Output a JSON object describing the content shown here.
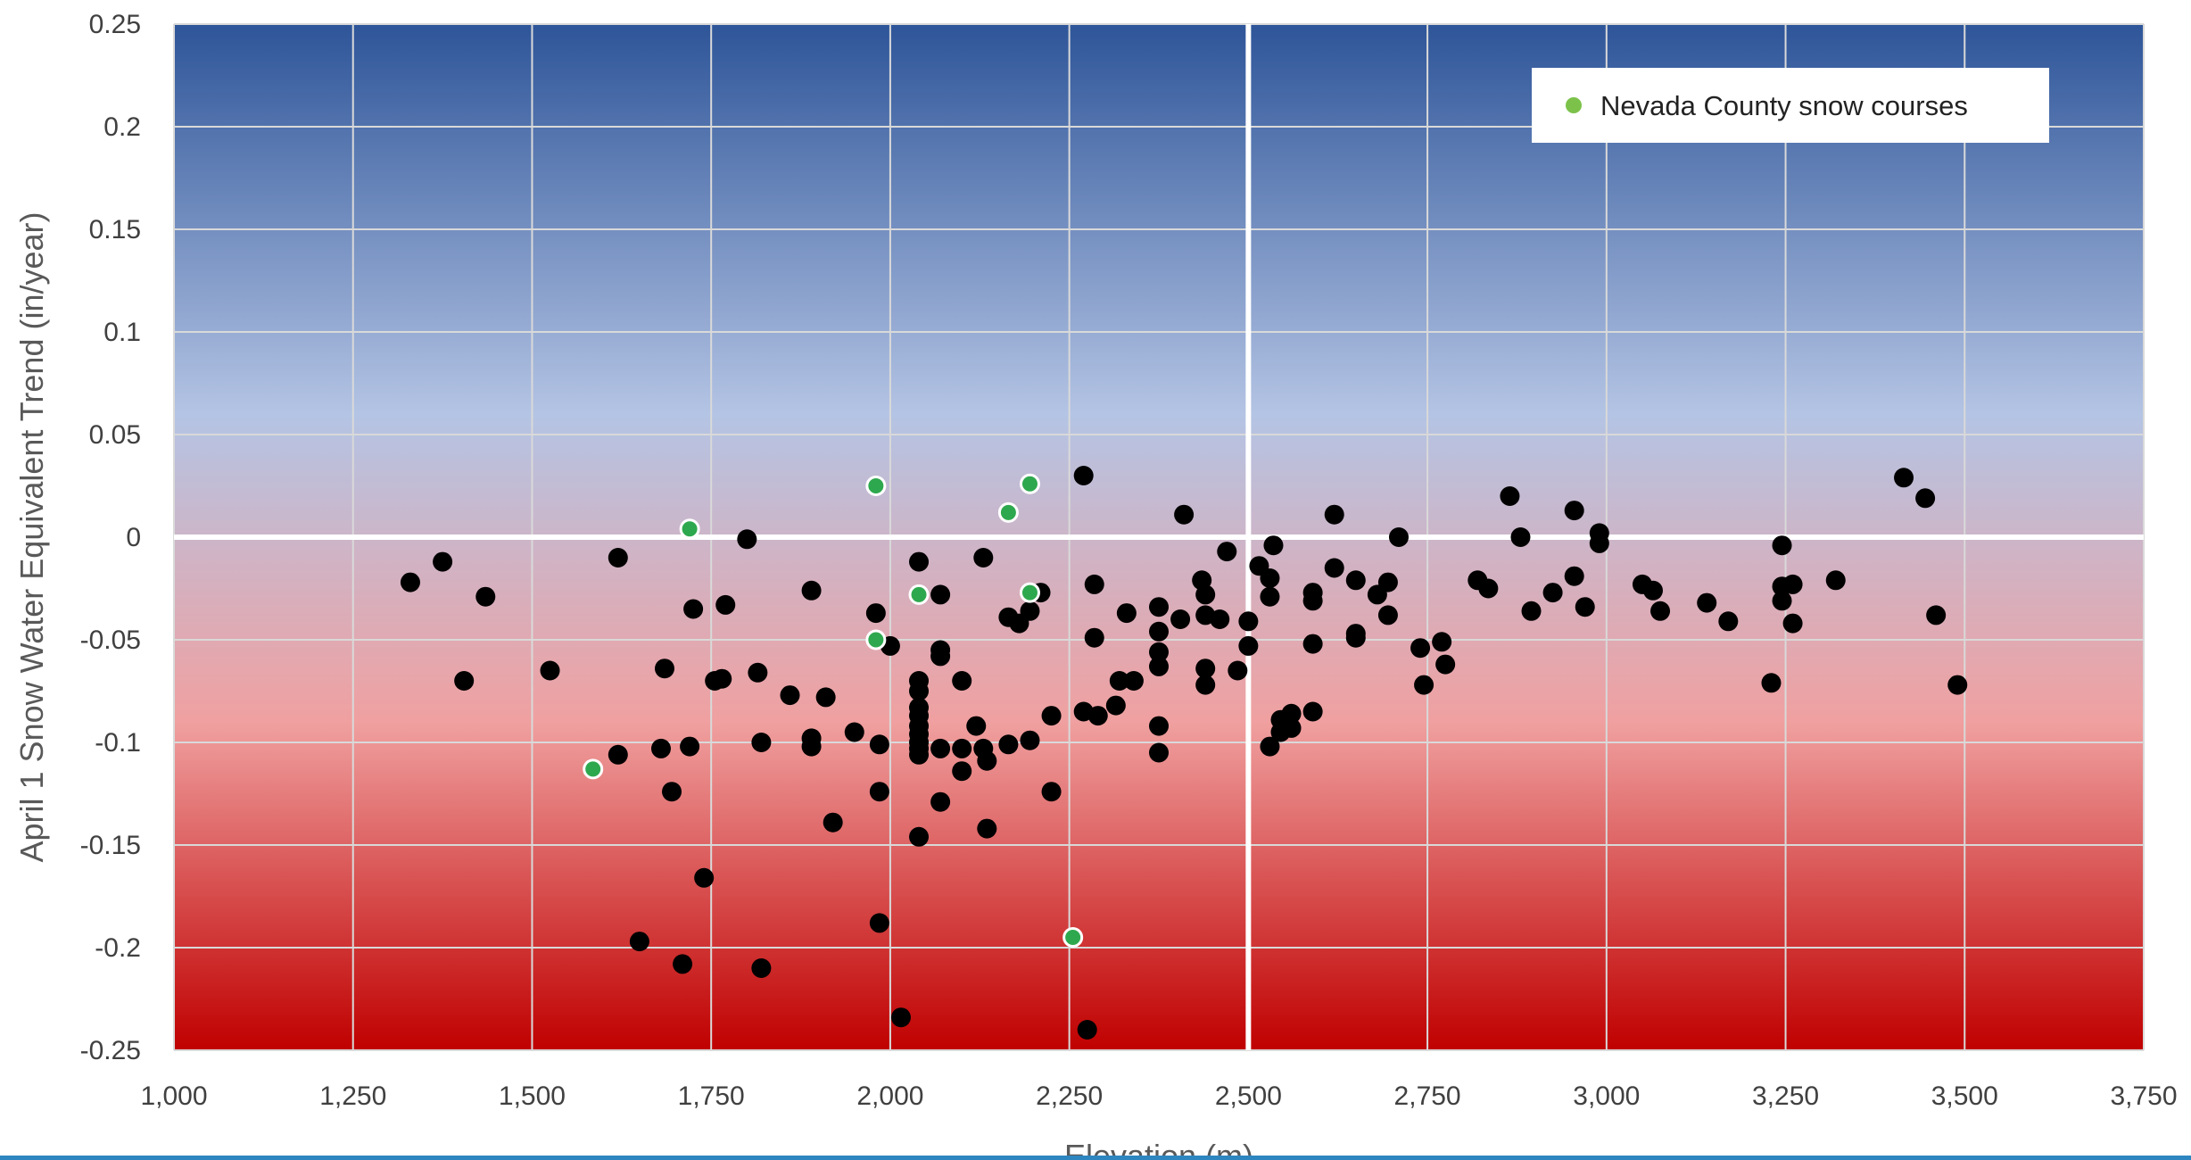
{
  "chart_data": {
    "type": "scatter",
    "title": "",
    "xlabel": "Elevation (m)",
    "ylabel": "April 1 Snow Water Equivalent Trend (in/year)",
    "xlim": [
      1000,
      3750
    ],
    "ylim": [
      -0.25,
      0.25
    ],
    "x_ticks": [
      1000,
      1250,
      1500,
      1750,
      2000,
      2250,
      2500,
      2750,
      3000,
      3250,
      3500,
      3750
    ],
    "x_tick_labels": [
      "1,000",
      "1,250",
      "1,500",
      "1,750",
      "2,000",
      "2,250",
      "2,500",
      "2,750",
      "3,000",
      "3,250",
      "3,500",
      "3,750"
    ],
    "y_ticks": [
      0.25,
      0.2,
      0.15,
      0.1,
      0.05,
      0,
      -0.05,
      -0.1,
      -0.15,
      -0.2,
      -0.25
    ],
    "y_tick_labels": [
      "0.25",
      "0.2",
      "0.15",
      "0.1",
      "0.05",
      "0",
      "-0.05",
      "-0.1",
      "-0.15",
      "-0.2",
      "-0.25"
    ],
    "grid": true,
    "reference_lines": {
      "x": 2500,
      "y": 0
    },
    "legend_position": "top-right",
    "background_gradient": [
      "#2e5599",
      "#b4c4e4",
      "#f0a0a0",
      "#c00000"
    ],
    "series": [
      {
        "name": "",
        "color": "#000000",
        "points": [
          [
            1330,
            -0.022
          ],
          [
            1375,
            -0.012
          ],
          [
            1435,
            -0.029
          ],
          [
            1405,
            -0.07
          ],
          [
            1525,
            -0.065
          ],
          [
            1620,
            -0.01
          ],
          [
            1620,
            -0.106
          ],
          [
            1650,
            -0.197
          ],
          [
            1680,
            -0.103
          ],
          [
            1685,
            -0.064
          ],
          [
            1695,
            -0.124
          ],
          [
            1710,
            -0.208
          ],
          [
            1720,
            -0.102
          ],
          [
            1725,
            -0.035
          ],
          [
            1740,
            -0.166
          ],
          [
            1755,
            -0.07
          ],
          [
            1765,
            -0.069
          ],
          [
            1770,
            -0.033
          ],
          [
            1800,
            -0.001
          ],
          [
            1815,
            -0.066
          ],
          [
            1820,
            -0.1
          ],
          [
            1820,
            -0.21
          ],
          [
            1860,
            -0.077
          ],
          [
            1890,
            -0.026
          ],
          [
            1890,
            -0.098
          ],
          [
            1890,
            -0.102
          ],
          [
            1910,
            -0.078
          ],
          [
            1920,
            -0.139
          ],
          [
            1950,
            -0.095
          ],
          [
            1980,
            -0.037
          ],
          [
            1985,
            -0.101
          ],
          [
            1985,
            -0.124
          ],
          [
            1985,
            -0.188
          ],
          [
            2000,
            -0.053
          ],
          [
            2015,
            -0.234
          ],
          [
            2040,
            -0.012
          ],
          [
            2040,
            -0.07
          ],
          [
            2040,
            -0.075
          ],
          [
            2040,
            -0.083
          ],
          [
            2040,
            -0.087
          ],
          [
            2040,
            -0.092
          ],
          [
            2040,
            -0.096
          ],
          [
            2040,
            -0.1
          ],
          [
            2040,
            -0.103
          ],
          [
            2040,
            -0.106
          ],
          [
            2040,
            -0.146
          ],
          [
            2070,
            -0.028
          ],
          [
            2070,
            -0.055
          ],
          [
            2070,
            -0.058
          ],
          [
            2070,
            -0.103
          ],
          [
            2070,
            -0.129
          ],
          [
            2100,
            -0.07
          ],
          [
            2100,
            -0.103
          ],
          [
            2100,
            -0.114
          ],
          [
            2120,
            -0.092
          ],
          [
            2130,
            -0.01
          ],
          [
            2130,
            -0.103
          ],
          [
            2135,
            -0.109
          ],
          [
            2135,
            -0.142
          ],
          [
            2165,
            -0.039
          ],
          [
            2165,
            -0.101
          ],
          [
            2180,
            -0.042
          ],
          [
            2195,
            -0.036
          ],
          [
            2195,
            -0.099
          ],
          [
            2210,
            -0.027
          ],
          [
            2225,
            -0.087
          ],
          [
            2225,
            -0.124
          ],
          [
            2270,
            0.03
          ],
          [
            2270,
            -0.085
          ],
          [
            2275,
            -0.24
          ],
          [
            2285,
            -0.023
          ],
          [
            2285,
            -0.049
          ],
          [
            2290,
            -0.087
          ],
          [
            2315,
            -0.082
          ],
          [
            2320,
            -0.07
          ],
          [
            2330,
            -0.037
          ],
          [
            2340,
            -0.07
          ],
          [
            2375,
            -0.034
          ],
          [
            2375,
            -0.046
          ],
          [
            2375,
            -0.056
          ],
          [
            2375,
            -0.063
          ],
          [
            2375,
            -0.092
          ],
          [
            2375,
            -0.105
          ],
          [
            2405,
            -0.04
          ],
          [
            2410,
            0.011
          ],
          [
            2435,
            -0.021
          ],
          [
            2440,
            -0.028
          ],
          [
            2440,
            -0.038
          ],
          [
            2440,
            -0.064
          ],
          [
            2440,
            -0.072
          ],
          [
            2460,
            -0.04
          ],
          [
            2470,
            -0.007
          ],
          [
            2485,
            -0.065
          ],
          [
            2500,
            -0.041
          ],
          [
            2500,
            -0.053
          ],
          [
            2515,
            -0.014
          ],
          [
            2530,
            -0.02
          ],
          [
            2530,
            -0.029
          ],
          [
            2530,
            -0.102
          ],
          [
            2535,
            -0.004
          ],
          [
            2545,
            -0.089
          ],
          [
            2545,
            -0.095
          ],
          [
            2560,
            -0.086
          ],
          [
            2560,
            -0.093
          ],
          [
            2590,
            -0.027
          ],
          [
            2590,
            -0.031
          ],
          [
            2590,
            -0.052
          ],
          [
            2590,
            -0.085
          ],
          [
            2620,
            -0.015
          ],
          [
            2620,
            0.011
          ],
          [
            2650,
            -0.021
          ],
          [
            2650,
            -0.047
          ],
          [
            2650,
            -0.049
          ],
          [
            2680,
            -0.028
          ],
          [
            2695,
            -0.022
          ],
          [
            2695,
            -0.038
          ],
          [
            2710,
            0.0
          ],
          [
            2740,
            -0.054
          ],
          [
            2745,
            -0.072
          ],
          [
            2770,
            -0.051
          ],
          [
            2775,
            -0.062
          ],
          [
            2820,
            -0.021
          ],
          [
            2835,
            -0.025
          ],
          [
            2865,
            0.02
          ],
          [
            2880,
            0.0
          ],
          [
            2895,
            -0.036
          ],
          [
            2925,
            -0.027
          ],
          [
            2955,
            -0.019
          ],
          [
            2955,
            0.013
          ],
          [
            2970,
            -0.034
          ],
          [
            2990,
            0.002
          ],
          [
            2990,
            -0.003
          ],
          [
            3050,
            -0.023
          ],
          [
            3065,
            -0.026
          ],
          [
            3075,
            -0.036
          ],
          [
            3140,
            -0.032
          ],
          [
            3170,
            -0.041
          ],
          [
            3230,
            -0.071
          ],
          [
            3245,
            -0.004
          ],
          [
            3245,
            -0.024
          ],
          [
            3245,
            -0.031
          ],
          [
            3260,
            -0.023
          ],
          [
            3260,
            -0.042
          ],
          [
            3320,
            -0.021
          ],
          [
            3415,
            0.029
          ],
          [
            3445,
            0.019
          ],
          [
            3460,
            -0.038
          ],
          [
            3490,
            -0.072
          ]
        ]
      },
      {
        "name": "Nevada County snow courses",
        "color": "#2ea84e",
        "points": [
          [
            1585,
            -0.113
          ],
          [
            1720,
            0.004
          ],
          [
            1980,
            0.025
          ],
          [
            1980,
            -0.05
          ],
          [
            2040,
            -0.028
          ],
          [
            2165,
            0.012
          ],
          [
            2195,
            0.026
          ],
          [
            2195,
            -0.027
          ],
          [
            2255,
            -0.195
          ]
        ]
      }
    ]
  }
}
